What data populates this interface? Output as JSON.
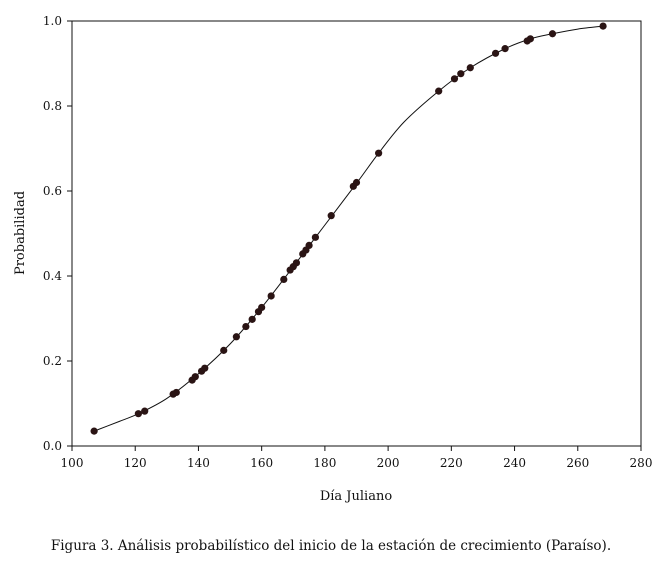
{
  "caption": "Figura 3. Análisis probabilístico del inicio de la estación de crecimiento (Paraíso).",
  "chart_data": {
    "type": "scatter",
    "title": "",
    "xlabel": "Día Juliano",
    "ylabel": "Probabilidad",
    "xlim": [
      100,
      280
    ],
    "ylim": [
      0.0,
      1.0
    ],
    "xticks": [
      100,
      120,
      140,
      160,
      180,
      200,
      220,
      240,
      260,
      280
    ],
    "xtick_labels": [
      "100",
      "120",
      "140",
      "160",
      "180",
      "200",
      "220",
      "240",
      "260",
      "280"
    ],
    "yticks": [
      0.0,
      0.2,
      0.4,
      0.6,
      0.8,
      1.0
    ],
    "ytick_labels": [
      "0.0",
      "0.2",
      "0.4",
      "0.6",
      "0.8",
      "1.0"
    ],
    "grid": false,
    "colors": {
      "points": "#2a1414",
      "curve": "#111111",
      "axes": "#111111"
    },
    "series": [
      {
        "kind": "points",
        "x": [
          107,
          121,
          123,
          132,
          133,
          138,
          139,
          141,
          142,
          148,
          152,
          155,
          157,
          159,
          160,
          163,
          167,
          169,
          170,
          171,
          173,
          174,
          175,
          177,
          182,
          189,
          190,
          197,
          216,
          221,
          223,
          226,
          234,
          237,
          244,
          245,
          252,
          268
        ],
        "y": [
          0.035,
          0.076,
          0.082,
          0.122,
          0.126,
          0.155,
          0.163,
          0.176,
          0.183,
          0.225,
          0.257,
          0.281,
          0.298,
          0.316,
          0.326,
          0.353,
          0.392,
          0.414,
          0.422,
          0.431,
          0.452,
          0.461,
          0.472,
          0.491,
          0.542,
          0.611,
          0.62,
          0.689,
          0.835,
          0.864,
          0.876,
          0.89,
          0.924,
          0.935,
          0.953,
          0.958,
          0.97,
          0.988
        ]
      },
      {
        "kind": "curve",
        "x": [
          107,
          115,
          121,
          130,
          140,
          150,
          160,
          170,
          180,
          190,
          197,
          205,
          216,
          226,
          237,
          245,
          252,
          260,
          268
        ],
        "y": [
          0.035,
          0.058,
          0.076,
          0.112,
          0.17,
          0.24,
          0.326,
          0.422,
          0.52,
          0.618,
          0.689,
          0.762,
          0.835,
          0.89,
          0.935,
          0.958,
          0.97,
          0.981,
          0.988
        ]
      }
    ]
  }
}
